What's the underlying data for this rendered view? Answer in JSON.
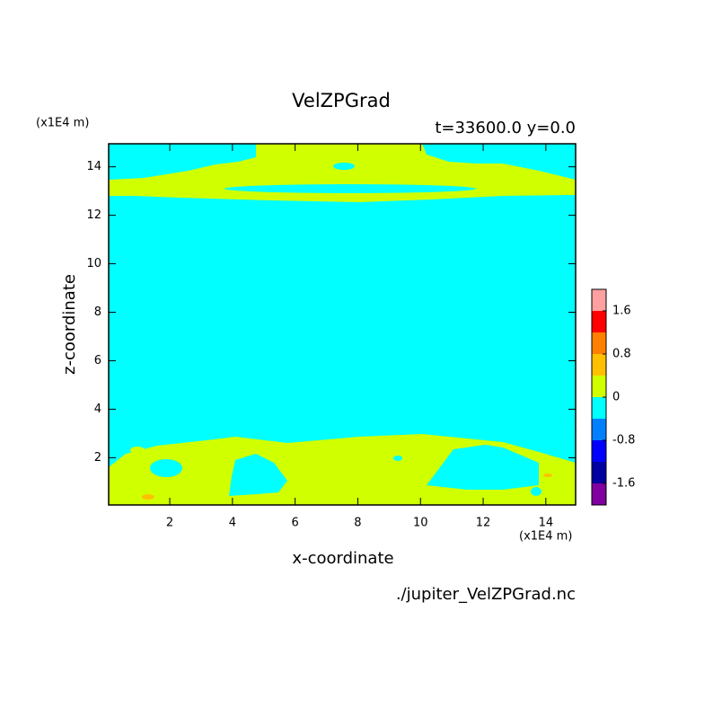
{
  "chart_data": {
    "type": "contour",
    "title": "VelZPGrad",
    "subtitle": "t=33600.0 y=0.0",
    "xlabel": "x-coordinate",
    "ylabel": "z-coordinate",
    "x_unit": "(x1E4 m)",
    "y_unit": "(x1E4 m)",
    "source": "./jupiter_VelZPGrad.nc",
    "xlim": [
      0.05,
      14.95
    ],
    "ylim": [
      0.05,
      14.95
    ],
    "xticks": [
      2,
      4,
      6,
      8,
      10,
      12,
      14
    ],
    "yticks": [
      2,
      4,
      6,
      8,
      10,
      12,
      14
    ],
    "colorbar": {
      "levels": [
        -2,
        -1.6,
        -1.2,
        -0.8,
        -0.4,
        0,
        0.4,
        0.8,
        1.2,
        1.6,
        2
      ],
      "colors": [
        "#8000a0",
        "#0000a0",
        "#0000ff",
        "#0080ff",
        "#00ffff",
        "#d0ff00",
        "#ffc000",
        "#ff8000",
        "#ff0000",
        "#ffa0a0"
      ],
      "cticks": [
        -1.6,
        -0.8,
        0,
        0.8,
        1.6
      ]
    }
  }
}
